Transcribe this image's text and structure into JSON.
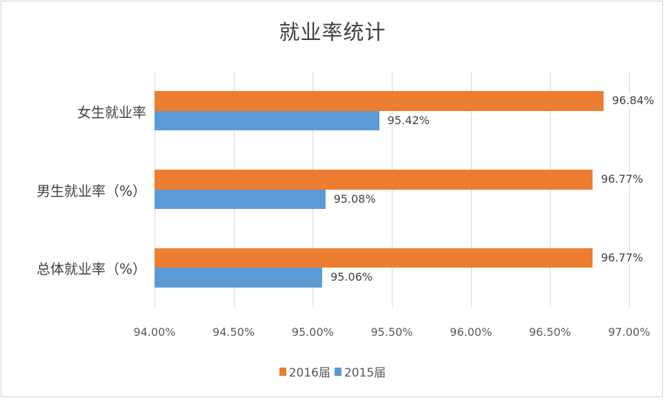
{
  "chart": {
    "title": "就业率统计",
    "colors": {
      "2016届": "#ed7d31",
      "2015届": "#5b9bd5"
    },
    "x_ticks": [
      "94.00%",
      "94.50%",
      "95.00%",
      "95.50%",
      "96.00%",
      "96.50%",
      "97.00%"
    ],
    "categories": [
      {
        "label": "女生就业率",
        "v2016": "96.84%",
        "v2015": "95.42%"
      },
      {
        "label": "男生就业率（%）",
        "v2016": "96.77%",
        "v2015": "95.08%"
      },
      {
        "label": "总体就业率（%）",
        "v2016": "96.77%",
        "v2015": "95.06%"
      }
    ],
    "legend": [
      {
        "label": "2016届",
        "color": "#ed7d31"
      },
      {
        "label": "2015届",
        "color": "#5b9bd5"
      }
    ]
  },
  "chart_data": {
    "type": "bar",
    "orientation": "horizontal",
    "title": "就业率统计",
    "categories": [
      "女生就业率",
      "男生就业率（%）",
      "总体就业率（%）"
    ],
    "series": [
      {
        "name": "2016届",
        "values": [
          96.84,
          96.77,
          96.77
        ],
        "color": "#ed7d31"
      },
      {
        "name": "2015届",
        "values": [
          95.42,
          95.08,
          95.06
        ],
        "color": "#5b9bd5"
      }
    ],
    "xlabel": "",
    "ylabel": "",
    "xlim": [
      94.0,
      97.0
    ],
    "x_tick_labels": [
      "94.00%",
      "94.50%",
      "95.00%",
      "95.50%",
      "96.00%",
      "96.50%",
      "97.00%"
    ],
    "data_labels": true,
    "grid": {
      "vertical": true,
      "horizontal": false
    },
    "legend_position": "bottom"
  }
}
